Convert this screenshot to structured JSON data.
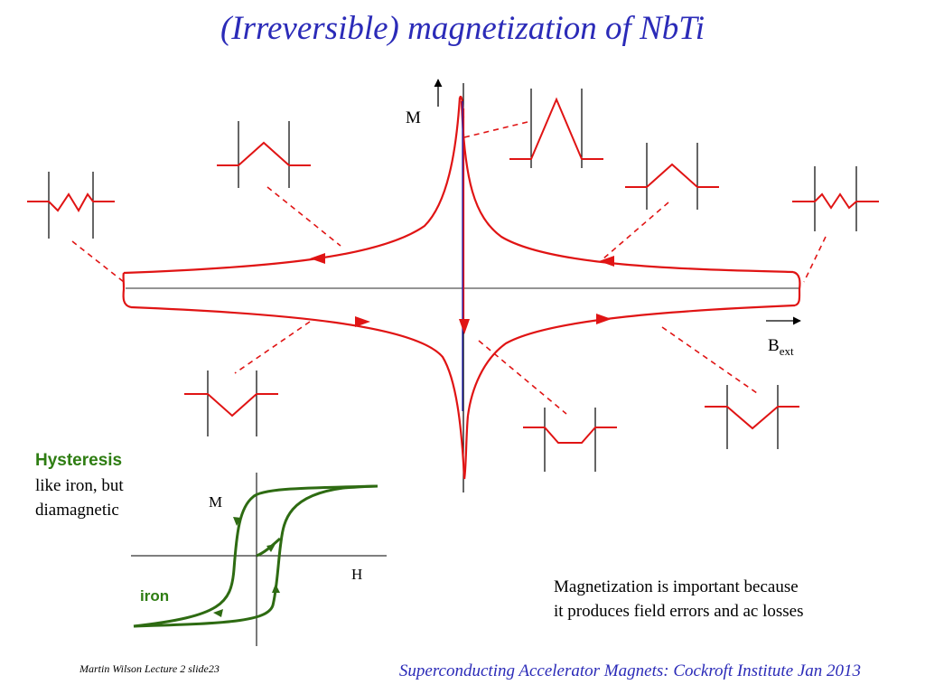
{
  "title": "(Irreversible) magnetization of NbTi",
  "main_plot": {
    "y_axis_label": "M",
    "x_axis_label_base": "B",
    "x_axis_label_sub": "ext"
  },
  "hysteresis": {
    "title": "Hysteresis",
    "line1": "like iron, but",
    "line2": "diamagnetic",
    "y_axis_label": "M",
    "x_axis_label": "H",
    "curve_label": "iron"
  },
  "note": {
    "line1": "Magnetization is important because",
    "line2": "it produces field errors and ac losses"
  },
  "footer": {
    "author": "Martin Wilson Lecture 2 slide23",
    "course": "Superconducting Accelerator Magnets:  Cockroft Institute Jan 2013"
  },
  "colors": {
    "title": "#2b2bb8",
    "curve": "#e01414",
    "iron": "#2e7d12",
    "axis": "#000000",
    "center_line": "#2020b0"
  }
}
